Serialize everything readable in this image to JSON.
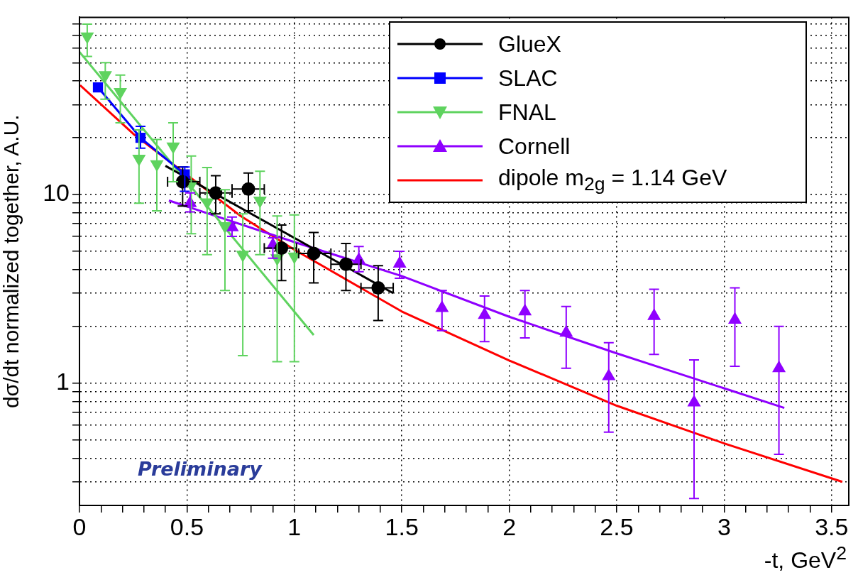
{
  "chart_data": {
    "type": "scatter",
    "ylabel": "dσ/dt normalized together, A.U.",
    "xlabel": "-t, GeV$^{2}$",
    "xlim": [
      0,
      3.58
    ],
    "ylim": [
      0.225,
      87
    ],
    "log": "y",
    "grid": true,
    "legend": "top right",
    "xticks": [
      0,
      {
        "value": 0.1,
        "label": null
      },
      {
        "value": 0.2,
        "label": null
      },
      {
        "value": 0.3,
        "label": null
      },
      {
        "value": 0.4,
        "label": null
      },
      0.5,
      {
        "value": 0.6,
        "label": null
      },
      {
        "value": 0.7,
        "label": null
      },
      {
        "value": 0.8,
        "label": null
      },
      {
        "value": 0.9,
        "label": null
      },
      1,
      {
        "value": 1.1,
        "label": null
      },
      {
        "value": 1.2,
        "label": null
      },
      {
        "value": 1.3,
        "label": null
      },
      {
        "value": 1.4,
        "label": null
      },
      1.5,
      {
        "value": 1.6,
        "label": null
      },
      {
        "value": 1.7,
        "label": null
      },
      {
        "value": 1.8,
        "label": null
      },
      {
        "value": 1.9,
        "label": null
      },
      2,
      {
        "value": 2.1,
        "label": null
      },
      {
        "value": 2.2,
        "label": null
      },
      {
        "value": 2.3,
        "label": null
      },
      {
        "value": 2.4,
        "label": null
      },
      2.5,
      {
        "value": 2.6,
        "label": null
      },
      {
        "value": 2.7,
        "label": null
      },
      {
        "value": 2.8,
        "label": null
      },
      {
        "value": 2.9,
        "label": null
      },
      3,
      {
        "value": 3.1,
        "label": null
      },
      {
        "value": 3.2,
        "label": null
      },
      {
        "value": 3.3,
        "label": null
      },
      {
        "value": 3.4,
        "label": null
      },
      3.5
    ],
    "yticks": [
      {
        "value": 0.3,
        "label": null
      },
      {
        "value": 0.4,
        "label": null
      },
      {
        "value": 0.5,
        "label": null
      },
      {
        "value": 0.6,
        "label": null
      },
      {
        "value": 0.7,
        "label": null
      },
      {
        "value": 0.8,
        "label": null
      },
      {
        "value": 0.9,
        "label": null
      },
      1,
      {
        "value": 2,
        "label": null
      },
      {
        "value": 3,
        "label": null
      },
      {
        "value": 4,
        "label": null
      },
      {
        "value": 5,
        "label": null
      },
      {
        "value": 6,
        "label": null
      },
      {
        "value": 7,
        "label": null
      },
      {
        "value": 8,
        "label": null
      },
      {
        "value": 9,
        "label": null
      },
      10,
      {
        "value": 20,
        "label": null
      },
      {
        "value": 30,
        "label": null
      },
      {
        "value": 40,
        "label": null
      },
      {
        "value": 50,
        "label": null
      },
      {
        "value": 60,
        "label": null
      },
      {
        "value": 70,
        "label": null
      },
      {
        "value": 80,
        "label": null
      }
    ],
    "annotations": [
      "Preliminary"
    ],
    "series": [
      {
        "name": "GlueX",
        "type": "scatter",
        "marker": "circle",
        "color": "#000000",
        "x": [
          0.48,
          0.634,
          0.786,
          0.94,
          1.09,
          1.24,
          1.39
        ],
        "values": [
          11.7,
          10.2,
          10.7,
          5.2,
          4.88,
          4.27,
          3.2
        ],
        "errors": [
          [
            8.7,
            14
          ],
          [
            7.9,
            12.6
          ],
          [
            8.2,
            13
          ],
          [
            3.5,
            6.9
          ],
          [
            3.4,
            6.3
          ],
          [
            3.1,
            5.5
          ],
          [
            2.15,
            4.2
          ]
        ],
        "xerrors": [
          [
            0.41,
            0.56
          ],
          [
            0.56,
            0.71
          ],
          [
            0.71,
            0.86
          ],
          [
            0.86,
            1.01
          ],
          [
            1.02,
            1.17
          ],
          [
            1.17,
            1.31
          ],
          [
            1.31,
            1.46
          ]
        ]
      },
      {
        "type": "line",
        "marker": "none",
        "color": "#000000",
        "x": [
          0.4,
          1.46
        ],
        "values": [
          14.2,
          3.0
        ]
      },
      {
        "name": "SLAC",
        "type": "line",
        "marker": "square",
        "color": "#0000ff",
        "x": [
          0.086,
          0.284,
          0.49
        ],
        "values": [
          37,
          20,
          12.8
        ],
        "errors": [
          null,
          [
            17.6,
            23
          ],
          [
            10.4,
            14
          ]
        ]
      },
      {
        "name": "FNAL",
        "type": "scatter",
        "marker": "triangle-down",
        "color": "#5fd35f",
        "x": [
          0.036,
          0.12,
          0.19,
          0.277,
          0.36,
          0.436,
          0.52,
          0.594,
          0.677,
          0.76,
          0.84,
          0.92,
          1.0
        ],
        "values": [
          69,
          43,
          35,
          15.5,
          14.5,
          18,
          11.3,
          9.1,
          6.8,
          4.8,
          9.3,
          4.6,
          4.7
        ],
        "errors": [
          [
            54,
            80
          ],
          [
            32,
            50
          ],
          [
            24,
            43
          ],
          [
            9,
            22
          ],
          [
            8.2,
            19.6
          ],
          [
            11.7,
            24
          ],
          [
            6.2,
            16
          ],
          [
            4.8,
            13.9
          ],
          [
            3.1,
            10.6
          ],
          [
            1.4,
            7.9
          ],
          [
            4.8,
            13.3
          ],
          [
            1.3,
            7.7
          ],
          [
            1.3,
            7.8
          ]
        ]
      },
      {
        "type": "line",
        "marker": "none",
        "color": "#5fd35f",
        "x": [
          0,
          1.09
        ],
        "values": [
          57,
          1.8
        ]
      },
      {
        "name": "Cornell",
        "type": "scatter",
        "marker": "triangle",
        "color": "#8f00ff",
        "x": [
          0.515,
          0.71,
          0.9,
          1.09,
          1.3,
          1.49,
          1.687,
          1.885,
          2.073,
          2.265,
          2.463,
          2.674,
          2.86,
          3.05,
          3.255
        ],
        "values": [
          9.0,
          6.7,
          5.4,
          null,
          4.5,
          4.3,
          2.5,
          2.3,
          2.4,
          1.85,
          1.09,
          2.27,
          0.79,
          2.17,
          1.2
        ],
        "errors": [
          [
            8.1,
            10.2
          ],
          [
            6,
            7.6
          ],
          [
            4.6,
            5.9
          ],
          null,
          [
            3.9,
            5.3
          ],
          [
            3.6,
            5
          ],
          [
            1.9,
            3.1
          ],
          [
            1.66,
            2.9
          ],
          [
            1.74,
            3.1
          ],
          [
            1.2,
            2.55
          ],
          [
            0.55,
            1.64
          ],
          [
            1.42,
            3.15
          ],
          [
            0.245,
            1.33
          ],
          [
            1.23,
            3.2
          ],
          [
            0.42,
            2.0
          ]
        ]
      },
      {
        "type": "line",
        "marker": "none",
        "color": "#8f00ff",
        "x": [
          0.416,
          1,
          1.5,
          2,
          2.5,
          3,
          3.28
        ],
        "values": [
          9.3,
          5.6,
          3.7,
          2.25,
          1.44,
          0.94,
          0.74
        ]
      },
      {
        "name": "dipole m$_{2g}$ = 1.14 GeV",
        "type": "line",
        "marker": "none",
        "color": "#ff0000",
        "x": [
          0.003,
          0.25,
          0.75,
          1,
          1.5,
          2,
          2.5,
          3,
          3.55
        ],
        "values": [
          38,
          21,
          7.7,
          5.1,
          2.4,
          1.32,
          0.76,
          0.48,
          0.3
        ]
      }
    ]
  }
}
